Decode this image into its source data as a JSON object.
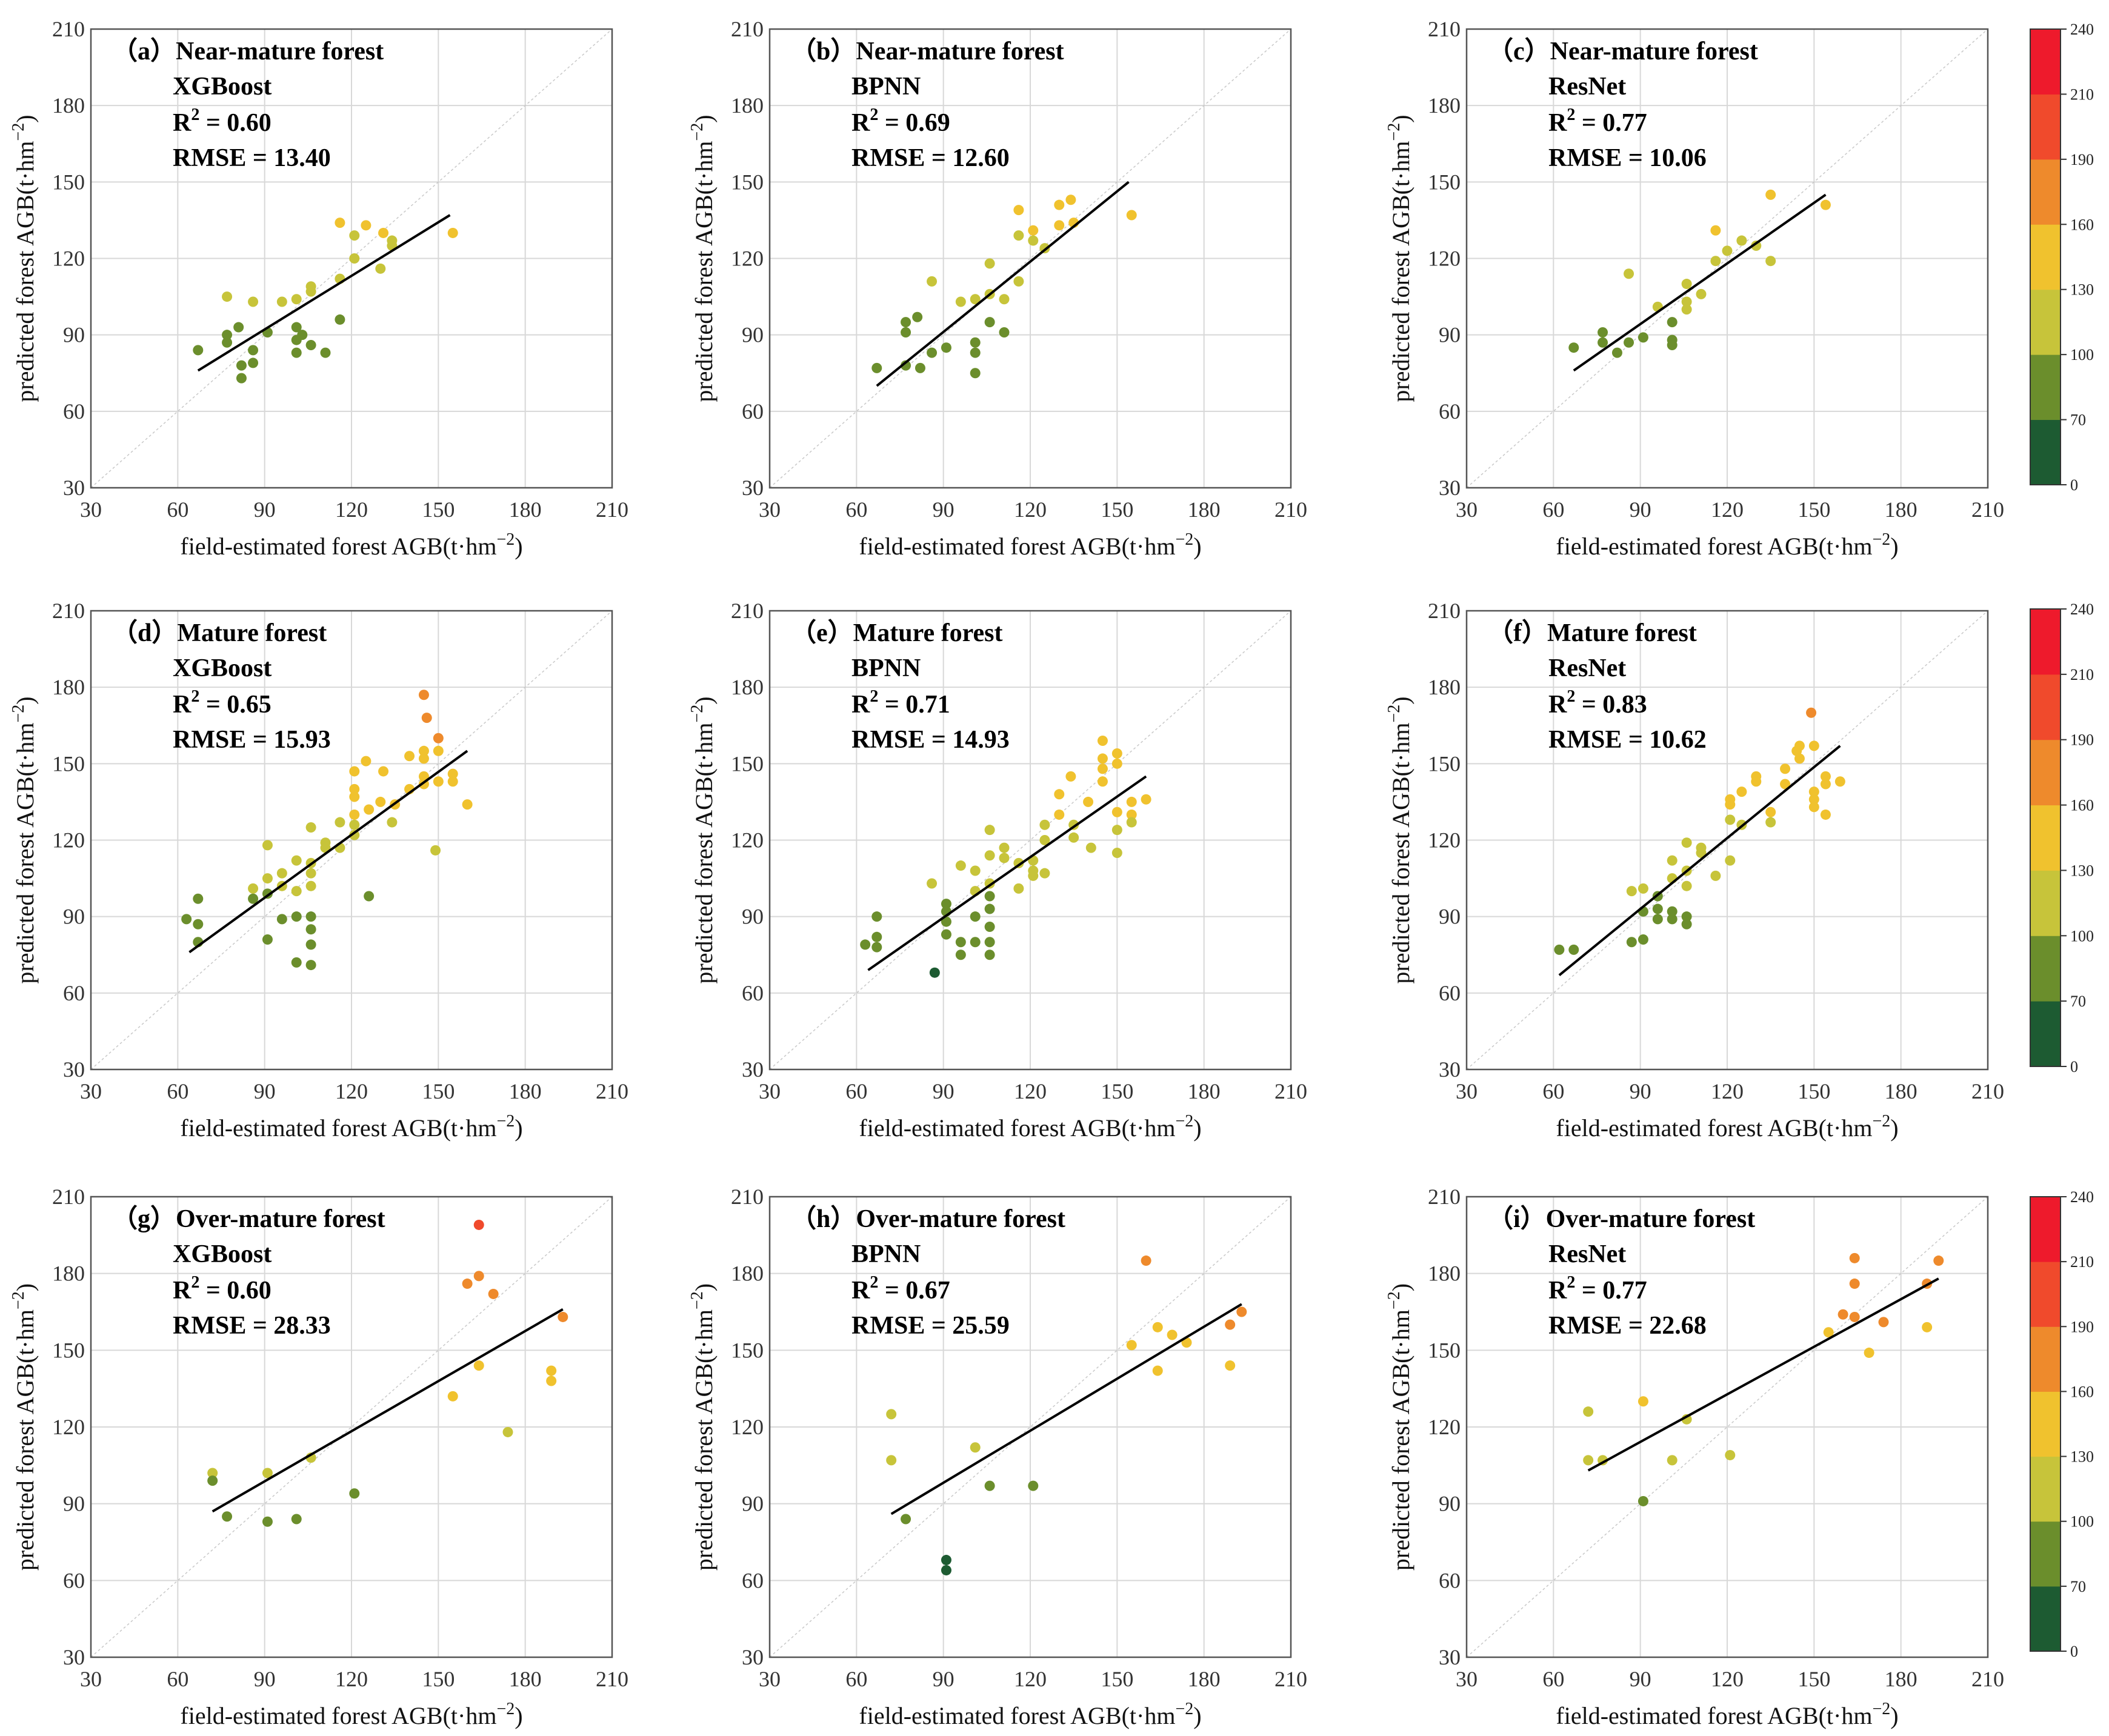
{
  "figure": {
    "axis_range": [
      30,
      210
    ],
    "ticks": [
      30,
      60,
      90,
      120,
      150,
      180,
      210
    ],
    "xlabel": "field-estimated forest AGB(t·hm",
    "xlabel_sup": "−2",
    "xlabel_end": ")",
    "ylabel": "predicted forest AGB(t·hm",
    "ylabel_sup": "−2",
    "ylabel_end": ")",
    "r2_prefix": "R",
    "r2_sup": "2",
    "colorbar": {
      "ticks": [
        0,
        70,
        100,
        130,
        160,
        190,
        210,
        240
      ],
      "colors": [
        "#1d5b32",
        "#6b8e2c",
        "#c7c43a",
        "#f0c22e",
        "#ee8a2c",
        "#f04a2c",
        "#ee1a2c"
      ]
    }
  },
  "chart_data": [
    {
      "type": "scatter",
      "label": "(a)",
      "title": "Near-mature forest",
      "model": "XGBoost",
      "r2": "0.60",
      "rmse": "RMSE = 13.40",
      "fit": [
        [
          67,
          76
        ],
        [
          154,
          137
        ]
      ],
      "points": [
        [
          67,
          84
        ],
        [
          77,
          87
        ],
        [
          77,
          90
        ],
        [
          77,
          105
        ],
        [
          81,
          93
        ],
        [
          82,
          78
        ],
        [
          82,
          73
        ],
        [
          86,
          84
        ],
        [
          86,
          79
        ],
        [
          86,
          103
        ],
        [
          91,
          91
        ],
        [
          96,
          103
        ],
        [
          101,
          104
        ],
        [
          101,
          93
        ],
        [
          101,
          88
        ],
        [
          101,
          83
        ],
        [
          103,
          90
        ],
        [
          106,
          109
        ],
        [
          106,
          107
        ],
        [
          106,
          86
        ],
        [
          111,
          83
        ],
        [
          116,
          112
        ],
        [
          116,
          96
        ],
        [
          116,
          134
        ],
        [
          121,
          129
        ],
        [
          121,
          120
        ],
        [
          125,
          133
        ],
        [
          130,
          116
        ],
        [
          131,
          130
        ],
        [
          134,
          127
        ],
        [
          134,
          125
        ],
        [
          155,
          130
        ]
      ]
    },
    {
      "type": "scatter",
      "label": "(b)",
      "title": "Near-mature forest",
      "model": "BPNN",
      "r2": "0.69",
      "rmse": "RMSE = 12.60",
      "fit": [
        [
          67,
          70
        ],
        [
          154,
          150
        ]
      ],
      "points": [
        [
          67,
          77
        ],
        [
          77,
          95
        ],
        [
          77,
          91
        ],
        [
          77,
          78
        ],
        [
          81,
          97
        ],
        [
          82,
          77
        ],
        [
          86,
          83
        ],
        [
          86,
          111
        ],
        [
          91,
          85
        ],
        [
          96,
          103
        ],
        [
          101,
          104
        ],
        [
          101,
          87
        ],
        [
          101,
          83
        ],
        [
          101,
          75
        ],
        [
          106,
          118
        ],
        [
          106,
          106
        ],
        [
          106,
          95
        ],
        [
          111,
          91
        ],
        [
          111,
          104
        ],
        [
          116,
          111
        ],
        [
          116,
          129
        ],
        [
          116,
          139
        ],
        [
          121,
          131
        ],
        [
          121,
          127
        ],
        [
          125,
          124
        ],
        [
          130,
          133
        ],
        [
          130,
          141
        ],
        [
          134,
          143
        ],
        [
          135,
          134
        ],
        [
          155,
          137
        ]
      ]
    },
    {
      "type": "scatter",
      "label": "(c)",
      "title": "Near-mature forest",
      "model": "ResNet",
      "r2": "0.77",
      "rmse": "RMSE = 10.06",
      "fit": [
        [
          67,
          76
        ],
        [
          154,
          145
        ]
      ],
      "points": [
        [
          67,
          85
        ],
        [
          77,
          91
        ],
        [
          77,
          87
        ],
        [
          82,
          83
        ],
        [
          86,
          114
        ],
        [
          86,
          87
        ],
        [
          91,
          89
        ],
        [
          96,
          101
        ],
        [
          101,
          95
        ],
        [
          101,
          88
        ],
        [
          101,
          86
        ],
        [
          106,
          110
        ],
        [
          106,
          103
        ],
        [
          106,
          100
        ],
        [
          111,
          106
        ],
        [
          116,
          131
        ],
        [
          116,
          119
        ],
        [
          120,
          123
        ],
        [
          125,
          127
        ],
        [
          130,
          125
        ],
        [
          135,
          145
        ],
        [
          135,
          119
        ],
        [
          154,
          141
        ]
      ]
    },
    {
      "type": "scatter",
      "label": "(d)",
      "title": "Mature forest",
      "model": "XGBoost",
      "r2": "0.65",
      "rmse": "RMSE = 15.93",
      "fit": [
        [
          64,
          76
        ],
        [
          160,
          155
        ]
      ],
      "points": [
        [
          63,
          89
        ],
        [
          67,
          97
        ],
        [
          67,
          87
        ],
        [
          67,
          80
        ],
        [
          86,
          101
        ],
        [
          86,
          97
        ],
        [
          91,
          118
        ],
        [
          91,
          105
        ],
        [
          91,
          99
        ],
        [
          91,
          81
        ],
        [
          96,
          107
        ],
        [
          96,
          102
        ],
        [
          96,
          89
        ],
        [
          101,
          112
        ],
        [
          101,
          100
        ],
        [
          101,
          90
        ],
        [
          101,
          72
        ],
        [
          106,
          125
        ],
        [
          106,
          111
        ],
        [
          106,
          107
        ],
        [
          106,
          102
        ],
        [
          106,
          90
        ],
        [
          106,
          85
        ],
        [
          106,
          79
        ],
        [
          106,
          71
        ],
        [
          111,
          117
        ],
        [
          111,
          119
        ],
        [
          116,
          117
        ],
        [
          116,
          127
        ],
        [
          121,
          122
        ],
        [
          121,
          130
        ],
        [
          121,
          126
        ],
        [
          121,
          137
        ],
        [
          121,
          147
        ],
        [
          121,
          140
        ],
        [
          125,
          151
        ],
        [
          126,
          98
        ],
        [
          126,
          132
        ],
        [
          130,
          135
        ],
        [
          131,
          147
        ],
        [
          134,
          127
        ],
        [
          135,
          134
        ],
        [
          140,
          153
        ],
        [
          140,
          140
        ],
        [
          145,
          152
        ],
        [
          145,
          155
        ],
        [
          145,
          142
        ],
        [
          145,
          145
        ],
        [
          146,
          168
        ],
        [
          145,
          177
        ],
        [
          149,
          116
        ],
        [
          150,
          143
        ],
        [
          150,
          160
        ],
        [
          150,
          155
        ],
        [
          155,
          146
        ],
        [
          155,
          143
        ],
        [
          160,
          134
        ]
      ]
    },
    {
      "type": "scatter",
      "label": "(e)",
      "title": "Mature forest",
      "model": "BPNN",
      "r2": "0.71",
      "rmse": "RMSE = 14.93",
      "fit": [
        [
          64,
          69
        ],
        [
          160,
          145
        ]
      ],
      "points": [
        [
          63,
          79
        ],
        [
          67,
          90
        ],
        [
          67,
          82
        ],
        [
          67,
          78
        ],
        [
          86,
          103
        ],
        [
          87,
          68
        ],
        [
          91,
          95
        ],
        [
          91,
          92
        ],
        [
          91,
          88
        ],
        [
          91,
          83
        ],
        [
          96,
          110
        ],
        [
          96,
          80
        ],
        [
          96,
          75
        ],
        [
          101,
          108
        ],
        [
          101,
          100
        ],
        [
          101,
          90
        ],
        [
          101,
          80
        ],
        [
          106,
          124
        ],
        [
          106,
          114
        ],
        [
          106,
          103
        ],
        [
          106,
          98
        ],
        [
          106,
          93
        ],
        [
          106,
          86
        ],
        [
          106,
          80
        ],
        [
          106,
          75
        ],
        [
          111,
          117
        ],
        [
          111,
          113
        ],
        [
          116,
          111
        ],
        [
          116,
          101
        ],
        [
          121,
          112
        ],
        [
          121,
          108
        ],
        [
          121,
          106
        ],
        [
          125,
          126
        ],
        [
          125,
          120
        ],
        [
          125,
          107
        ],
        [
          130,
          138
        ],
        [
          130,
          130
        ],
        [
          134,
          145
        ],
        [
          135,
          126
        ],
        [
          135,
          121
        ],
        [
          140,
          135
        ],
        [
          141,
          117
        ],
        [
          145,
          159
        ],
        [
          145,
          152
        ],
        [
          145,
          148
        ],
        [
          145,
          143
        ],
        [
          150,
          154
        ],
        [
          150,
          150
        ],
        [
          150,
          131
        ],
        [
          150,
          115
        ],
        [
          150,
          124
        ],
        [
          155,
          135
        ],
        [
          155,
          130
        ],
        [
          155,
          127
        ],
        [
          160,
          136
        ]
      ]
    },
    {
      "type": "scatter",
      "label": "(f)",
      "title": "Mature forest",
      "model": "ResNet",
      "r2": "0.83",
      "rmse": "RMSE = 10.62",
      "fit": [
        [
          62,
          67
        ],
        [
          159,
          157
        ]
      ],
      "points": [
        [
          62,
          77
        ],
        [
          67,
          77
        ],
        [
          87,
          100
        ],
        [
          87,
          80
        ],
        [
          91,
          101
        ],
        [
          91,
          92
        ],
        [
          91,
          81
        ],
        [
          96,
          98
        ],
        [
          96,
          93
        ],
        [
          96,
          89
        ],
        [
          101,
          112
        ],
        [
          101,
          105
        ],
        [
          101,
          92
        ],
        [
          101,
          89
        ],
        [
          106,
          119
        ],
        [
          106,
          108
        ],
        [
          106,
          102
        ],
        [
          106,
          90
        ],
        [
          106,
          87
        ],
        [
          111,
          115
        ],
        [
          111,
          117
        ],
        [
          116,
          106
        ],
        [
          121,
          134
        ],
        [
          121,
          128
        ],
        [
          121,
          112
        ],
        [
          121,
          136
        ],
        [
          125,
          139
        ],
        [
          125,
          126
        ],
        [
          130,
          143
        ],
        [
          130,
          145
        ],
        [
          135,
          131
        ],
        [
          135,
          127
        ],
        [
          140,
          142
        ],
        [
          140,
          148
        ],
        [
          144,
          155
        ],
        [
          145,
          157
        ],
        [
          145,
          152
        ],
        [
          149,
          170
        ],
        [
          150,
          157
        ],
        [
          150,
          139
        ],
        [
          150,
          136
        ],
        [
          150,
          133
        ],
        [
          154,
          145
        ],
        [
          154,
          142
        ],
        [
          154,
          130
        ],
        [
          159,
          143
        ]
      ]
    },
    {
      "type": "scatter",
      "label": "(g)",
      "title": "Over-mature forest",
      "model": "XGBoost",
      "r2": "0.60",
      "rmse": "RMSE = 28.33",
      "fit": [
        [
          72,
          87
        ],
        [
          193,
          166
        ]
      ],
      "points": [
        [
          72,
          102
        ],
        [
          72,
          99
        ],
        [
          77,
          85
        ],
        [
          91,
          102
        ],
        [
          91,
          83
        ],
        [
          106,
          108
        ],
        [
          101,
          84
        ],
        [
          121,
          94
        ],
        [
          155,
          132
        ],
        [
          160,
          176
        ],
        [
          164,
          199
        ],
        [
          164,
          179
        ],
        [
          164,
          144
        ],
        [
          169,
          172
        ],
        [
          174,
          118
        ],
        [
          189,
          142
        ],
        [
          189,
          138
        ],
        [
          193,
          163
        ]
      ]
    },
    {
      "type": "scatter",
      "label": "(h)",
      "title": "Over-mature forest",
      "model": "BPNN",
      "r2": "0.67",
      "rmse": "RMSE = 25.59",
      "fit": [
        [
          72,
          86
        ],
        [
          193,
          168
        ]
      ],
      "points": [
        [
          72,
          125
        ],
        [
          72,
          107
        ],
        [
          77,
          84
        ],
        [
          91,
          68
        ],
        [
          91,
          64
        ],
        [
          101,
          112
        ],
        [
          106,
          97
        ],
        [
          121,
          97
        ],
        [
          155,
          152
        ],
        [
          160,
          185
        ],
        [
          164,
          159
        ],
        [
          164,
          142
        ],
        [
          169,
          156
        ],
        [
          174,
          153
        ],
        [
          189,
          160
        ],
        [
          189,
          144
        ],
        [
          193,
          165
        ]
      ]
    },
    {
      "type": "scatter",
      "label": "(i)",
      "title": "Over-mature forest",
      "model": "ResNet",
      "r2": "0.77",
      "rmse": "RMSE = 22.68",
      "fit": [
        [
          72,
          103
        ],
        [
          193,
          178
        ]
      ],
      "points": [
        [
          72,
          126
        ],
        [
          72,
          107
        ],
        [
          77,
          107
        ],
        [
          91,
          130
        ],
        [
          91,
          91
        ],
        [
          101,
          107
        ],
        [
          106,
          123
        ],
        [
          121,
          109
        ],
        [
          155,
          157
        ],
        [
          160,
          164
        ],
        [
          164,
          186
        ],
        [
          164,
          176
        ],
        [
          164,
          163
        ],
        [
          169,
          149
        ],
        [
          174,
          161
        ],
        [
          189,
          176
        ],
        [
          189,
          159
        ],
        [
          193,
          185
        ]
      ]
    }
  ]
}
